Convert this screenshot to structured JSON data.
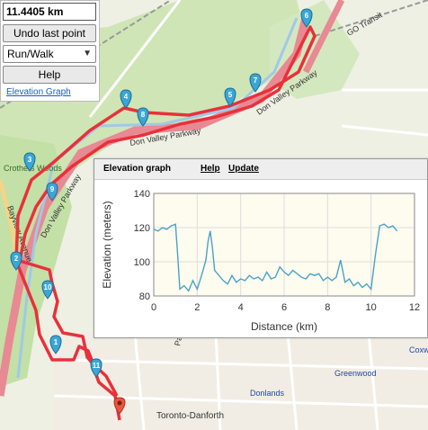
{
  "panel": {
    "distance": "11.4405 km",
    "undo_label": "Undo last point",
    "mode_value": "Run/Walk",
    "help_label": "Help",
    "elevation_link": "Elevation Graph"
  },
  "map": {
    "streets": [
      {
        "name": "Don Valley Parkway"
      },
      {
        "name": "Don Valley Parkway"
      },
      {
        "name": "Don Valley Parkway"
      },
      {
        "name": "Bayview Avenue"
      },
      {
        "name": "Pape Avenue"
      },
      {
        "name": "Greenwood"
      },
      {
        "name": "Donlands"
      },
      {
        "name": "Toronto-Danforth"
      },
      {
        "name": "Crothers Woods"
      },
      {
        "name": "GO Transit"
      },
      {
        "name": "Coxw"
      }
    ],
    "markers": [
      "1",
      "2",
      "3",
      "4",
      "5",
      "6",
      "7",
      "8",
      "9",
      "10",
      "11"
    ],
    "route_color": "#e8313a",
    "marker_color": "#3aa6d6",
    "end_marker_color": "#e8553a"
  },
  "popup": {
    "title": "Elevation graph",
    "help": "Help",
    "update": "Update"
  },
  "chart_data": {
    "type": "line",
    "title": "",
    "xlabel": "Distance (km)",
    "ylabel": "Elevation (meters)",
    "xlim": [
      0,
      12
    ],
    "ylim": [
      80,
      140
    ],
    "xticks": [
      "0",
      "2",
      "4",
      "6",
      "8",
      "10",
      "12"
    ],
    "yticks": [
      "80",
      "100",
      "120",
      "140"
    ],
    "grid": true,
    "line_color": "#4aa3c8",
    "series": [
      {
        "x": [
          0,
          0.2,
          0.4,
          0.6,
          0.8,
          1.0,
          1.1,
          1.2,
          1.4,
          1.6,
          1.8,
          2.0,
          2.2,
          2.4,
          2.5,
          2.6,
          2.7,
          2.8,
          3.0,
          3.2,
          3.4,
          3.6,
          3.8,
          4.0,
          4.2,
          4.4,
          4.6,
          4.8,
          5.0,
          5.2,
          5.4,
          5.6,
          5.8,
          6.0,
          6.2,
          6.4,
          6.6,
          6.8,
          7.0,
          7.2,
          7.4,
          7.6,
          7.8,
          8.0,
          8.2,
          8.4,
          8.6,
          8.8,
          9.0,
          9.2,
          9.4,
          9.6,
          9.8,
          10.0,
          10.2,
          10.4,
          10.6,
          10.8,
          11.0,
          11.2
        ],
        "y": [
          119,
          118,
          120,
          119,
          121,
          122,
          104,
          84,
          86,
          83,
          89,
          84,
          92,
          101,
          112,
          118,
          108,
          95,
          92,
          89,
          87,
          92,
          88,
          90,
          89,
          92,
          90,
          91,
          89,
          94,
          90,
          91,
          97,
          94,
          92,
          95,
          93,
          91,
          90,
          93,
          92,
          93,
          89,
          91,
          89,
          91,
          101,
          88,
          90,
          86,
          88,
          85,
          87,
          84,
          104,
          121,
          122,
          120,
          121,
          118
        ]
      }
    ]
  }
}
